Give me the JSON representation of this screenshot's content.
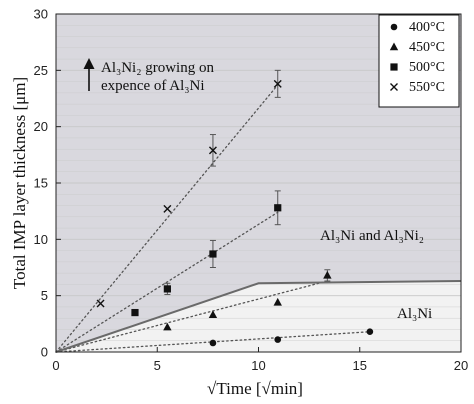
{
  "chart_data": {
    "type": "scatter",
    "xlabel": "√Time [√min]",
    "ylabel": "Total IMP layer thickness [μm]",
    "xlim": [
      0,
      20
    ],
    "ylim": [
      0,
      30
    ],
    "xticks": [
      0,
      5,
      10,
      15,
      20
    ],
    "yticks": [
      0,
      5,
      10,
      15,
      20,
      25,
      30
    ],
    "grid": "horizontal minor and major lines",
    "legend_position": "top-right",
    "series": [
      {
        "name": "400°C",
        "marker": "circle",
        "x": [
          7.75,
          10.95,
          15.5
        ],
        "y": [
          0.8,
          1.1,
          1.8
        ],
        "err": [
          0,
          0,
          0
        ],
        "fit_end": [
          15.5,
          1.8
        ]
      },
      {
        "name": "450°C",
        "marker": "triangle",
        "x": [
          5.5,
          7.75,
          10.95,
          13.4
        ],
        "y": [
          2.2,
          3.3,
          4.4,
          6.8
        ],
        "err": [
          0,
          0,
          0,
          0.5
        ],
        "fit_end": [
          13.4,
          6.3
        ]
      },
      {
        "name": "500°C",
        "marker": "square",
        "x": [
          3.9,
          5.5,
          7.75,
          10.95
        ],
        "y": [
          3.5,
          5.6,
          8.7,
          12.8
        ],
        "err": [
          0,
          0.5,
          1.2,
          1.5
        ],
        "fit_end": [
          10.95,
          12.4
        ]
      },
      {
        "name": "550°C",
        "marker": "x",
        "x": [
          2.2,
          5.5,
          7.75,
          10.95
        ],
        "y": [
          4.3,
          12.7,
          17.9,
          23.8
        ],
        "err": [
          0,
          0,
          1.4,
          1.2
        ],
        "fit_end": [
          10.95,
          23.7
        ]
      }
    ],
    "boundary": {
      "x": [
        0,
        10,
        20
      ],
      "y": [
        0,
        6.1,
        6.3
      ]
    },
    "annotations": {
      "growth_text_line1": "Al₃Ni₂ growing on",
      "growth_text_line2": "expence of Al₃Ni",
      "upper_region": "Al₃Ni and Al₃Ni₂",
      "lower_region": "Al₃Ni"
    }
  },
  "colors": {
    "upper_region": "#d9d8de",
    "lower_region": "#f2f2f2",
    "grid": "#c8c8c8",
    "boundary": "#6a6a6a",
    "marker": "#111111",
    "fit_line": "#555555"
  }
}
